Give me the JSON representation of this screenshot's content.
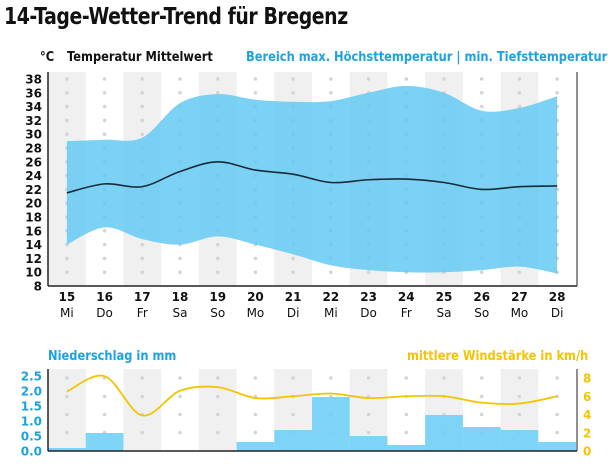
{
  "page": {
    "title": "14-Tage-Wetter-Trend für Bregenz"
  },
  "chart_data": [
    {
      "type": "area",
      "unit_label": "°C",
      "legend_mean": "Temperatur Mittelwert",
      "legend_range": "Bereich max. Höchsttemperatur | min. Tiefsttemperatur",
      "x": [
        "15",
        "16",
        "17",
        "18",
        "19",
        "20",
        "21",
        "22",
        "23",
        "24",
        "25",
        "26",
        "27",
        "28"
      ],
      "weekdays": [
        "Mi",
        "Do",
        "Fr",
        "Sa",
        "So",
        "Mo",
        "Di",
        "Mi",
        "Do",
        "Fr",
        "Sa",
        "So",
        "Mo",
        "Di"
      ],
      "series": [
        {
          "name": "Höchsttemperatur max",
          "values": [
            29,
            29.2,
            29.5,
            34.5,
            35.8,
            35,
            34.7,
            34.8,
            36,
            37,
            36,
            33.4,
            33.8,
            35.5
          ]
        },
        {
          "name": "Tiefsttemperatur min",
          "values": [
            14,
            16.5,
            14.8,
            14,
            15.2,
            14,
            12.6,
            11,
            10.3,
            10,
            10,
            10.3,
            10.8,
            9.8
          ]
        },
        {
          "name": "Temperatur Mittelwert",
          "values": [
            21.5,
            22.8,
            22.4,
            24.6,
            26,
            24.8,
            24.2,
            23,
            23.4,
            23.5,
            23,
            22,
            22.4,
            22.5
          ]
        }
      ],
      "ylim": [
        8,
        38
      ],
      "yticks": [
        "38",
        "36",
        "34",
        "32",
        "30",
        "28",
        "26",
        "24",
        "22",
        "20",
        "18",
        "16",
        "14",
        "12",
        "10",
        "8"
      ],
      "colors": {
        "range": "#5ec8f2",
        "mean": "#1a2a3a"
      },
      "grid": "dots"
    },
    {
      "type": "bar",
      "left_label": "Niederschlag in mm",
      "right_label": "mittlere Windstärke in km/h",
      "x": [
        "15",
        "16",
        "17",
        "18",
        "19",
        "20",
        "21",
        "22",
        "23",
        "24",
        "25",
        "26",
        "27",
        "28"
      ],
      "series": [
        {
          "name": "Niederschlag in mm",
          "type": "bar",
          "values": [
            0.1,
            0.6,
            0,
            0,
            0,
            0.3,
            0.7,
            1.8,
            0.5,
            0.2,
            1.2,
            0.8,
            0.7,
            0.3
          ]
        },
        {
          "name": "mittlere Windstärke in km/h",
          "type": "line",
          "values": [
            6.5,
            8.2,
            3.9,
            6.6,
            7.0,
            5.8,
            6.0,
            6.3,
            5.8,
            6.0,
            6.0,
            5.3,
            5.2,
            6.0
          ]
        }
      ],
      "ylim_left": [
        0,
        2.5
      ],
      "yticks_left": [
        "2.5",
        "2.0",
        "1.5",
        "1.0",
        "0.5",
        "0.0"
      ],
      "ylim_right": [
        0,
        8
      ],
      "yticks_right": [
        "8",
        "6",
        "4",
        "2",
        "0"
      ],
      "colors": {
        "bars": "#6ccff6",
        "wind": "#f5c400",
        "left_axis": "#1aa3e0"
      }
    }
  ]
}
